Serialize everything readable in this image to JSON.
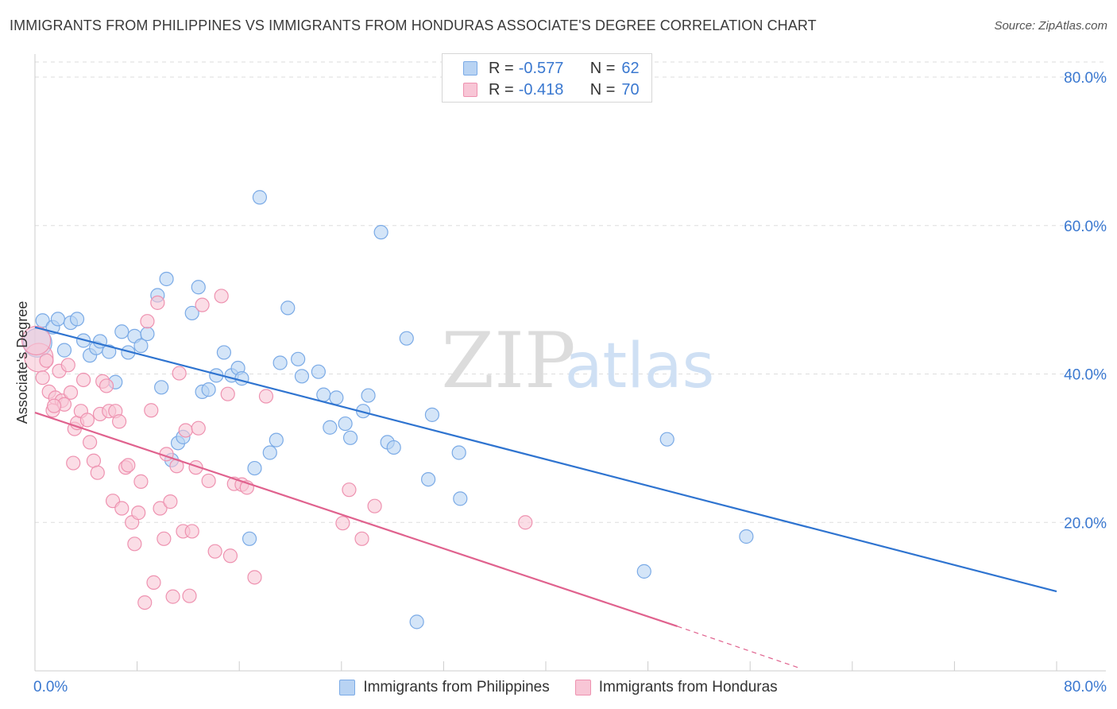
{
  "title": "IMMIGRANTS FROM PHILIPPINES VS IMMIGRANTS FROM HONDURAS ASSOCIATE'S DEGREE CORRELATION CHART",
  "source": "Source: ZipAtlas.com",
  "watermark": {
    "zip": "ZIP",
    "atlas": "atlas"
  },
  "colors": {
    "philippines_fill": "#b8d3f3",
    "philippines_stroke": "#7aaae6",
    "philippines_line": "#2f74d0",
    "honduras_fill": "#f8c6d6",
    "honduras_stroke": "#ee92b0",
    "honduras_line": "#e0628e",
    "tick_label": "#3a78d0",
    "grid": "#dddddd"
  },
  "legend": {
    "rows": [
      {
        "r_label": "R =",
        "r_value": "-0.577",
        "n_label": "N =",
        "n_value": "62"
      },
      {
        "r_label": "R =",
        "r_value": "-0.418",
        "n_label": "N =",
        "n_value": "70"
      }
    ]
  },
  "bottom_legend": {
    "philippines": "Immigrants from Philippines",
    "honduras": "Immigrants from Honduras"
  },
  "chart_data": {
    "type": "scatter",
    "title": "IMMIGRANTS FROM PHILIPPINES VS IMMIGRANTS FROM HONDURAS ASSOCIATE'S DEGREE CORRELATION CHART",
    "xlabel": "",
    "ylabel": "Associate's Degree",
    "xlim": [
      0,
      80
    ],
    "ylim": [
      0,
      82
    ],
    "x_tick_labels": [
      "0.0%",
      "80.0%"
    ],
    "y_ticks": [
      20,
      40,
      60,
      80
    ],
    "y_tick_labels": [
      "20.0%",
      "40.0%",
      "60.0%",
      "80.0%"
    ],
    "grid": true,
    "legend_position": "top-center",
    "series": [
      {
        "name": "Immigrants from Philippines",
        "r": -0.577,
        "n": 62,
        "trend": {
          "x": [
            0,
            80
          ],
          "y": [
            46.3,
            10.7
          ]
        },
        "points": [
          [
            0.6,
            47.2
          ],
          [
            1.4,
            46.3
          ],
          [
            1.8,
            47.4
          ],
          [
            2.3,
            43.2
          ],
          [
            2.8,
            46.9
          ],
          [
            3.3,
            47.4
          ],
          [
            3.8,
            44.5
          ],
          [
            4.3,
            42.5
          ],
          [
            4.8,
            43.5
          ],
          [
            5.1,
            44.4
          ],
          [
            5.8,
            43.0
          ],
          [
            6.3,
            38.9
          ],
          [
            6.8,
            45.7
          ],
          [
            7.3,
            42.9
          ],
          [
            7.8,
            45.1
          ],
          [
            8.3,
            43.8
          ],
          [
            8.8,
            45.4
          ],
          [
            9.6,
            50.6
          ],
          [
            9.9,
            38.2
          ],
          [
            10.3,
            52.8
          ],
          [
            10.7,
            28.4
          ],
          [
            11.2,
            30.7
          ],
          [
            11.6,
            31.5
          ],
          [
            12.3,
            48.2
          ],
          [
            12.8,
            51.7
          ],
          [
            13.1,
            37.6
          ],
          [
            13.6,
            37.9
          ],
          [
            14.2,
            39.8
          ],
          [
            14.8,
            42.9
          ],
          [
            15.4,
            39.8
          ],
          [
            15.9,
            40.8
          ],
          [
            16.2,
            39.4
          ],
          [
            16.8,
            17.8
          ],
          [
            17.2,
            27.3
          ],
          [
            17.6,
            63.8
          ],
          [
            18.4,
            29.4
          ],
          [
            18.9,
            31.1
          ],
          [
            19.2,
            41.5
          ],
          [
            19.8,
            48.9
          ],
          [
            20.6,
            42.0
          ],
          [
            20.9,
            39.7
          ],
          [
            22.2,
            40.3
          ],
          [
            22.6,
            37.2
          ],
          [
            23.1,
            32.8
          ],
          [
            23.6,
            36.8
          ],
          [
            24.3,
            33.3
          ],
          [
            24.7,
            31.4
          ],
          [
            25.7,
            35.0
          ],
          [
            26.1,
            37.1
          ],
          [
            27.1,
            59.1
          ],
          [
            27.6,
            30.8
          ],
          [
            28.1,
            30.1
          ],
          [
            29.1,
            44.8
          ],
          [
            30.8,
            25.8
          ],
          [
            31.1,
            34.5
          ],
          [
            33.2,
            29.4
          ],
          [
            33.3,
            23.2
          ],
          [
            47.7,
            13.4
          ],
          [
            49.5,
            31.2
          ],
          [
            55.7,
            18.1
          ],
          [
            29.9,
            6.6
          ],
          [
            0.2,
            44.2
          ]
        ]
      },
      {
        "name": "Immigrants from Honduras",
        "r": -0.418,
        "n": 70,
        "trend": {
          "x": [
            0,
            50.3
          ],
          "y": [
            34.8,
            6.0
          ]
        },
        "trend_dashed": {
          "x": [
            50.3,
            60
          ],
          "y": [
            6.0,
            0.3
          ]
        },
        "points": [
          [
            0.3,
            42.2
          ],
          [
            0.6,
            39.5
          ],
          [
            0.9,
            41.8
          ],
          [
            1.1,
            37.6
          ],
          [
            1.4,
            35.1
          ],
          [
            1.6,
            36.8
          ],
          [
            1.9,
            40.4
          ],
          [
            2.1,
            36.4
          ],
          [
            2.3,
            35.9
          ],
          [
            2.6,
            41.2
          ],
          [
            2.8,
            37.5
          ],
          [
            3.1,
            32.6
          ],
          [
            3.3,
            33.4
          ],
          [
            3.6,
            35.0
          ],
          [
            3.8,
            39.2
          ],
          [
            4.1,
            33.8
          ],
          [
            4.3,
            30.8
          ],
          [
            4.6,
            28.3
          ],
          [
            4.9,
            26.7
          ],
          [
            5.1,
            34.6
          ],
          [
            5.3,
            39.0
          ],
          [
            5.6,
            38.4
          ],
          [
            5.8,
            35.0
          ],
          [
            6.1,
            22.9
          ],
          [
            6.3,
            35.0
          ],
          [
            6.6,
            33.6
          ],
          [
            6.8,
            21.9
          ],
          [
            7.1,
            27.4
          ],
          [
            7.3,
            27.7
          ],
          [
            7.6,
            20.0
          ],
          [
            7.8,
            17.1
          ],
          [
            8.1,
            21.3
          ],
          [
            8.3,
            25.5
          ],
          [
            8.6,
            9.2
          ],
          [
            8.8,
            47.1
          ],
          [
            9.1,
            35.1
          ],
          [
            9.3,
            11.9
          ],
          [
            9.6,
            49.6
          ],
          [
            9.8,
            21.9
          ],
          [
            10.1,
            17.8
          ],
          [
            10.3,
            29.2
          ],
          [
            10.6,
            22.8
          ],
          [
            10.8,
            10.0
          ],
          [
            11.1,
            27.6
          ],
          [
            11.3,
            40.1
          ],
          [
            11.6,
            18.8
          ],
          [
            11.8,
            32.4
          ],
          [
            12.1,
            10.1
          ],
          [
            12.3,
            18.8
          ],
          [
            12.6,
            27.4
          ],
          [
            12.8,
            32.7
          ],
          [
            13.1,
            49.3
          ],
          [
            13.6,
            25.6
          ],
          [
            14.1,
            16.1
          ],
          [
            14.6,
            50.5
          ],
          [
            15.1,
            37.3
          ],
          [
            15.3,
            15.5
          ],
          [
            15.6,
            25.2
          ],
          [
            16.2,
            25.1
          ],
          [
            16.6,
            24.7
          ],
          [
            17.2,
            12.6
          ],
          [
            18.1,
            37.0
          ],
          [
            24.1,
            19.9
          ],
          [
            24.6,
            24.4
          ],
          [
            25.6,
            17.8
          ],
          [
            26.6,
            22.2
          ],
          [
            38.4,
            20.0
          ],
          [
            0.1,
            44.5
          ],
          [
            1.5,
            35.7
          ],
          [
            3.0,
            28.0
          ]
        ]
      }
    ]
  }
}
